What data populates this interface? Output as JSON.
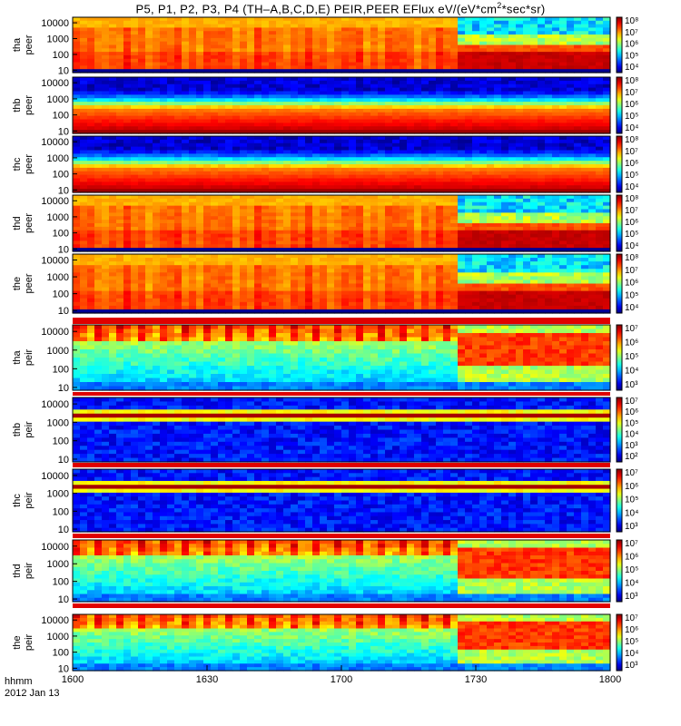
{
  "title_pre": "P5, P1, P2, P3, P4 (TH–A,B,C,D,E) PEIR,PEER EFlux eV/(eV*cm",
  "title_sup": "2",
  "title_post": "*sec*sr)",
  "footer": {
    "time_label": "hhmm",
    "date_label": "2012 Jan 13"
  },
  "colors": {
    "background": "#ffffff",
    "fill_bar": "#e00000"
  },
  "chart_data": {
    "type": "heatmap",
    "x": {
      "label": "hhmm",
      "ticks": [
        "1600",
        "1630",
        "1700",
        "1730",
        "1800"
      ],
      "range_minutes": [
        0,
        120
      ]
    },
    "y_ticks": [
      "10000",
      "1000",
      "100",
      "10"
    ],
    "panels": [
      {
        "probe": "tha",
        "species": "peer",
        "cb_ticks": [
          "10⁸",
          "10⁷",
          "10⁶",
          "10⁵",
          "10⁴"
        ],
        "pattern": "active",
        "transition_minute": 86
      },
      {
        "probe": "thb",
        "species": "peer",
        "cb_ticks": [
          "10⁸",
          "10⁷",
          "10⁶",
          "10⁵",
          "10⁴"
        ],
        "pattern": "steady"
      },
      {
        "probe": "thc",
        "species": "peer",
        "cb_ticks": [
          "10⁸",
          "10⁷",
          "10⁶",
          "10⁵",
          "10⁴"
        ],
        "pattern": "steady"
      },
      {
        "probe": "thd",
        "species": "peer",
        "cb_ticks": [
          "10⁸",
          "10⁷",
          "10⁶",
          "10⁵",
          "10⁴"
        ],
        "pattern": "active",
        "transition_minute": 86
      },
      {
        "probe": "the",
        "species": "peer",
        "cb_ticks": [
          "10⁸",
          "10⁷",
          "10⁶",
          "10⁵",
          "10⁴"
        ],
        "pattern": "active",
        "transition_minute": 86
      },
      {
        "probe": "tha",
        "species": "peir",
        "cb_ticks": [
          "10⁷",
          "10⁶",
          "10⁵",
          "10⁴",
          "10³"
        ],
        "pattern": "ion",
        "transition_minute": 86
      },
      {
        "probe": "thb",
        "species": "peir",
        "cb_ticks": [
          "10⁷",
          "10⁶",
          "10⁵",
          "10⁴",
          "10³",
          "10²"
        ],
        "pattern": "ion-quiet"
      },
      {
        "probe": "thc",
        "species": "peir",
        "cb_ticks": [
          "10⁷",
          "10⁶",
          "10⁵",
          "10⁴",
          "10³"
        ],
        "pattern": "ion-quiet"
      },
      {
        "probe": "thd",
        "species": "peir",
        "cb_ticks": [
          "10⁷",
          "10⁶",
          "10⁵",
          "10⁴",
          "10³"
        ],
        "pattern": "ion",
        "transition_minute": 86
      },
      {
        "probe": "the",
        "species": "peir",
        "cb_ticks": [
          "10⁷",
          "10⁶",
          "10⁵",
          "10⁴",
          "10³"
        ],
        "pattern": "ion",
        "transition_minute": 86
      }
    ]
  }
}
